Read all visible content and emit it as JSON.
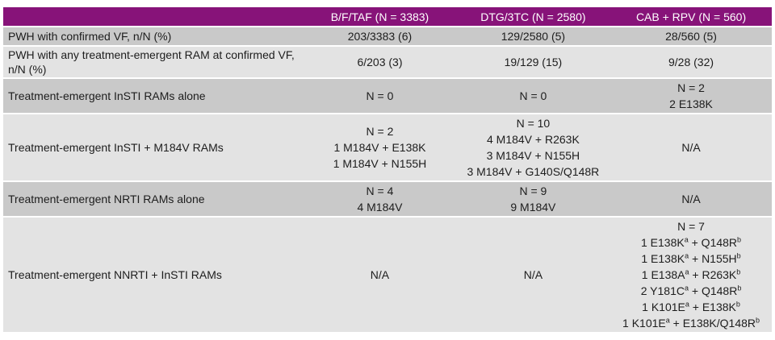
{
  "colors": {
    "header_bg": "#871379",
    "header_text": "#ffffff",
    "row_shade_dark": "#c9c9c9",
    "row_shade_light": "#e3e3e3",
    "body_text": "#1d1d1d"
  },
  "table": {
    "corner_label": "",
    "columns": [
      "B/F/TAF (N = 3383)",
      "DTG/3TC (N = 2580)",
      "CAB + RPV (N = 560)"
    ],
    "rows": [
      {
        "label": "PWH with confirmed VF, n/N (%)",
        "cells": [
          [
            "203/3383 (6)"
          ],
          [
            "129/2580 (5)"
          ],
          [
            "28/560 (5)"
          ]
        ]
      },
      {
        "label": "PWH with any treatment-emergent RAM at confirmed VF, n/N (%)",
        "cells": [
          [
            "6/203 (3)"
          ],
          [
            "19/129 (15)"
          ],
          [
            "9/28 (32)"
          ]
        ]
      },
      {
        "label": "Treatment-emergent InSTI RAMs alone",
        "cells": [
          [
            "N = 0"
          ],
          [
            "N = 0"
          ],
          [
            "N = 2",
            "2 E138K"
          ]
        ]
      },
      {
        "label": "Treatment-emergent InSTI + M184V RAMs",
        "cells": [
          [
            "N = 2",
            "1 M184V + E138K",
            "1 M184V + N155H"
          ],
          [
            "N = 10",
            "4 M184V + R263K",
            "3 M184V + N155H",
            "3 M184V + G140S/Q148R"
          ],
          [
            "N/A"
          ]
        ]
      },
      {
        "label": "Treatment-emergent NRTI RAMs alone",
        "cells": [
          [
            "N = 4",
            "4 M184V"
          ],
          [
            "N = 9",
            "9 M184V"
          ],
          [
            "N/A"
          ]
        ]
      },
      {
        "label": "Treatment-emergent NNRTI + InSTI RAMs",
        "cells": [
          [
            "N/A"
          ],
          [
            "N/A"
          ],
          [
            "N = 7",
            [
              {
                "t": "1 E138K"
              },
              {
                "t": "a",
                "sup": true
              },
              {
                "t": " + Q148R"
              },
              {
                "t": "b",
                "sup": true
              }
            ],
            [
              {
                "t": "1 E138K"
              },
              {
                "t": "a",
                "sup": true
              },
              {
                "t": " + N155H"
              },
              {
                "t": "b",
                "sup": true
              }
            ],
            [
              {
                "t": "1 E138A"
              },
              {
                "t": "a",
                "sup": true
              },
              {
                "t": " + R263K"
              },
              {
                "t": "b",
                "sup": true
              }
            ],
            [
              {
                "t": "2 Y181C"
              },
              {
                "t": "a",
                "sup": true
              },
              {
                "t": " + Q148R"
              },
              {
                "t": "b",
                "sup": true
              }
            ],
            [
              {
                "t": "1 K101E"
              },
              {
                "t": "a",
                "sup": true
              },
              {
                "t": " + E138K"
              },
              {
                "t": "b",
                "sup": true
              }
            ],
            [
              {
                "t": "1 K101E"
              },
              {
                "t": "a",
                "sup": true
              },
              {
                "t": " + E138K/Q148R"
              },
              {
                "t": "b",
                "sup": true
              }
            ]
          ]
        ]
      }
    ]
  }
}
